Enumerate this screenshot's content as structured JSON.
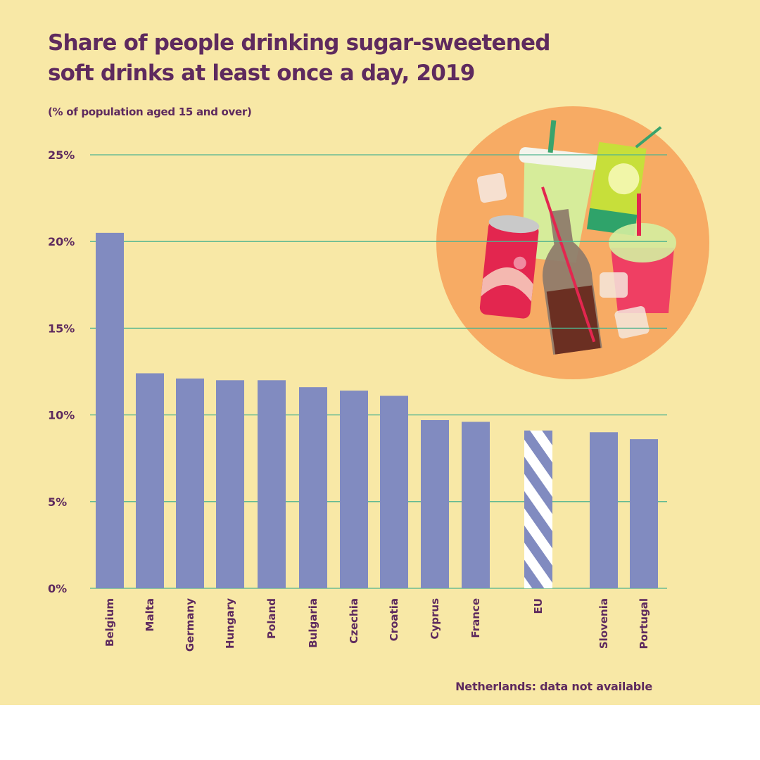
{
  "title": "Share of people drinking sugar-sweetened soft drinks at least once a day, 2019",
  "subtitle": "(% of population aged 15 and over)",
  "note": "Netherlands: data not available",
  "colors": {
    "background": "#f8e8a6",
    "bar": "#818bc0",
    "grid": "#4fb38f",
    "text": "#5e2a5e",
    "illustration_circle": "#f7ab64"
  },
  "illustration": "soft-drinks-illustration",
  "chart_data": {
    "type": "bar",
    "title": "Share of people drinking sugar-sweetened soft drinks at least once a day, 2019",
    "subtitle": "(% of population aged 15 and over)",
    "categories": [
      "Belgium",
      "Malta",
      "Germany",
      "Hungary",
      "Poland",
      "Bulgaria",
      "Czechia",
      "Croatia",
      "Cyprus",
      "France",
      "EU",
      "Slovenia",
      "Portugal"
    ],
    "values": [
      20.5,
      12.4,
      12.1,
      12.0,
      12.0,
      11.6,
      11.4,
      11.1,
      9.7,
      9.6,
      9.1,
      9.0,
      8.6
    ],
    "highlight": {
      "category": "EU",
      "pattern": "diagonal-stripes"
    },
    "ylim": [
      0,
      25
    ],
    "yticks": [
      "0%",
      "5%",
      "10%",
      "15%",
      "20%",
      "25%"
    ],
    "grid": true,
    "orientation": "vertical",
    "xlabel": "",
    "ylabel": ""
  }
}
